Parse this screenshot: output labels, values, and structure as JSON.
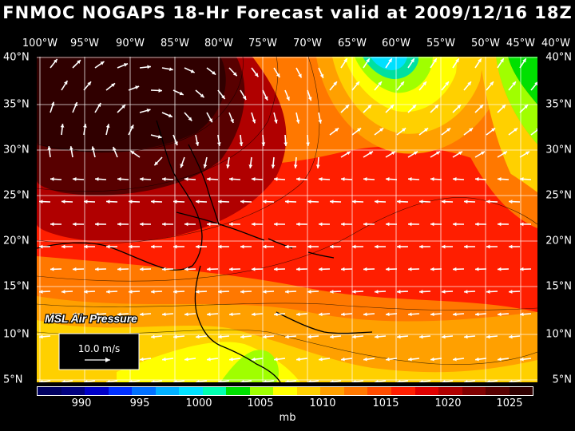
{
  "title": "FNMOC NOGAPS 18-Hr Forecast valid at 2009/12/16 18Z",
  "lon_labels": [
    "100°W",
    "95°W",
    "90°W",
    "85°W",
    "80°W",
    "75°W",
    "70°W",
    "65°W",
    "60°W",
    "55°W",
    "50°W",
    "45°W",
    "40°W"
  ],
  "lat_labels": [
    "40°N",
    "35°N",
    "30°N",
    "25°N",
    "20°N",
    "15°N",
    "10°N",
    "5°N"
  ],
  "map": {
    "field_label": "MSL Air Pressure",
    "vector_scale_label": "10.0 m/s"
  },
  "colorbar": {
    "colors": [
      "#000060",
      "#00007f",
      "#0000c8",
      "#0030ff",
      "#0070ff",
      "#00b0ff",
      "#00e0ff",
      "#00ffb0",
      "#00e000",
      "#a0ff00",
      "#ffff00",
      "#ffd000",
      "#ffa000",
      "#ff7800",
      "#ff4c00",
      "#ff1e00",
      "#e00000",
      "#b00000",
      "#800000",
      "#580000",
      "#300000"
    ],
    "labels": [
      "990",
      "995",
      "1000",
      "1005",
      "1010",
      "1015",
      "1020",
      "1025"
    ],
    "units": "mb"
  }
}
